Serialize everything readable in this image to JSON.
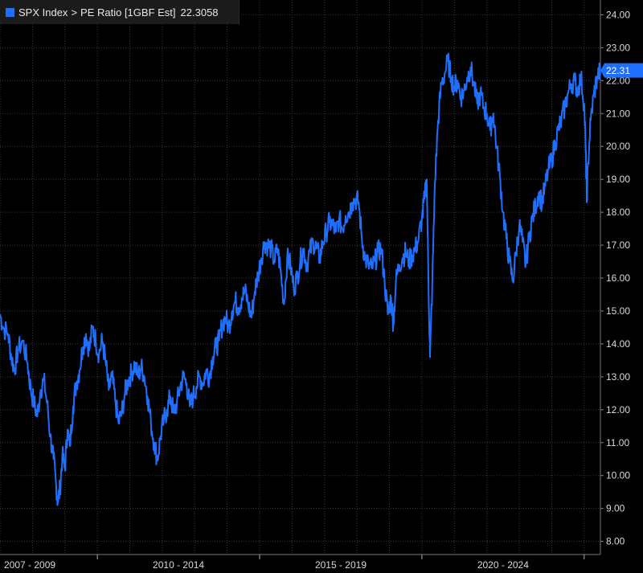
{
  "legend": {
    "series_label": "SPX Index",
    "separator": ">",
    "metric_label": "PE Ratio [1GBF Est]",
    "last_value": "22.3058"
  },
  "colors": {
    "line": "#1f6fff",
    "grid": "#3a3a3a",
    "background": "#000000",
    "text": "#d9d9d9"
  },
  "chart_data": {
    "type": "line",
    "x_axis_labels": [
      "2007 - 2009",
      "2010 - 2014",
      "2015 - 2019",
      "2020 - 2024"
    ],
    "yticks": [
      "8.00",
      "9.00",
      "10.00",
      "11.00",
      "12.00",
      "13.00",
      "14.00",
      "15.00",
      "16.00",
      "17.00",
      "18.00",
      "19.00",
      "20.00",
      "21.00",
      "22.00",
      "23.00",
      "24.00"
    ],
    "ylim": [
      7.6,
      24.45
    ],
    "xlim": [
      2007.0,
      2025.5
    ],
    "grid": true,
    "last_value_label": "22.31",
    "series": [
      {
        "values": [
          [
            2007.0,
            14.9
          ],
          [
            2007.1,
            14.5
          ],
          [
            2007.25,
            14.3
          ],
          [
            2007.35,
            13.6
          ],
          [
            2007.45,
            13.2
          ],
          [
            2007.55,
            13.8
          ],
          [
            2007.7,
            14.1
          ],
          [
            2007.85,
            13.4
          ],
          [
            2007.95,
            12.6
          ],
          [
            2008.05,
            12.2
          ],
          [
            2008.15,
            11.8
          ],
          [
            2008.25,
            12.6
          ],
          [
            2008.35,
            12.9
          ],
          [
            2008.45,
            12.2
          ],
          [
            2008.55,
            11.2
          ],
          [
            2008.65,
            10.5
          ],
          [
            2008.72,
            9.8
          ],
          [
            2008.78,
            9.2
          ],
          [
            2008.85,
            9.6
          ],
          [
            2008.92,
            10.6
          ],
          [
            2009.0,
            10.2
          ],
          [
            2009.08,
            11.4
          ],
          [
            2009.15,
            10.9
          ],
          [
            2009.25,
            12.1
          ],
          [
            2009.35,
            12.8
          ],
          [
            2009.45,
            13.2
          ],
          [
            2009.55,
            13.9
          ],
          [
            2009.65,
            14.3
          ],
          [
            2009.75,
            13.8
          ],
          [
            2009.85,
            14.5
          ],
          [
            2009.95,
            14.1
          ],
          [
            2010.05,
            13.7
          ],
          [
            2010.15,
            14.1
          ],
          [
            2010.25,
            13.5
          ],
          [
            2010.35,
            12.6
          ],
          [
            2010.45,
            13.0
          ],
          [
            2010.55,
            12.3
          ],
          [
            2010.65,
            11.6
          ],
          [
            2010.75,
            11.9
          ],
          [
            2010.85,
            12.5
          ],
          [
            2010.95,
            12.9
          ],
          [
            2011.05,
            13.1
          ],
          [
            2011.15,
            13.4
          ],
          [
            2011.25,
            13.0
          ],
          [
            2011.35,
            13.3
          ],
          [
            2011.45,
            13.0
          ],
          [
            2011.55,
            12.4
          ],
          [
            2011.65,
            11.6
          ],
          [
            2011.75,
            11.0
          ],
          [
            2011.85,
            10.5
          ],
          [
            2011.95,
            11.2
          ],
          [
            2012.05,
            11.7
          ],
          [
            2012.15,
            12.0
          ],
          [
            2012.25,
            12.4
          ],
          [
            2012.35,
            11.9
          ],
          [
            2012.45,
            12.2
          ],
          [
            2012.55,
            12.7
          ],
          [
            2012.65,
            13.0
          ],
          [
            2012.75,
            12.8
          ],
          [
            2012.85,
            12.1
          ],
          [
            2012.95,
            12.4
          ],
          [
            2013.05,
            12.7
          ],
          [
            2013.15,
            13.0
          ],
          [
            2013.25,
            12.8
          ],
          [
            2013.35,
            13.2
          ],
          [
            2013.45,
            13.0
          ],
          [
            2013.55,
            13.6
          ],
          [
            2013.65,
            13.9
          ],
          [
            2013.75,
            14.1
          ],
          [
            2013.85,
            14.6
          ],
          [
            2013.95,
            14.8
          ],
          [
            2014.05,
            14.5
          ],
          [
            2014.15,
            15.0
          ],
          [
            2014.25,
            15.3
          ],
          [
            2014.35,
            15.1
          ],
          [
            2014.45,
            15.4
          ],
          [
            2014.55,
            15.6
          ],
          [
            2014.65,
            15.2
          ],
          [
            2014.75,
            14.8
          ],
          [
            2014.85,
            15.6
          ],
          [
            2014.95,
            16.1
          ],
          [
            2015.05,
            16.6
          ],
          [
            2015.15,
            17.1
          ],
          [
            2015.25,
            17.0
          ],
          [
            2015.35,
            16.9
          ],
          [
            2015.45,
            16.5
          ],
          [
            2015.55,
            16.9
          ],
          [
            2015.65,
            16.2
          ],
          [
            2015.75,
            15.2
          ],
          [
            2015.85,
            16.6
          ],
          [
            2015.95,
            16.4
          ],
          [
            2016.05,
            15.7
          ],
          [
            2016.15,
            16.0
          ],
          [
            2016.25,
            16.5
          ],
          [
            2016.35,
            16.9
          ],
          [
            2016.45,
            16.4
          ],
          [
            2016.55,
            16.8
          ],
          [
            2016.65,
            17.1
          ],
          [
            2016.75,
            16.9
          ],
          [
            2016.85,
            16.6
          ],
          [
            2016.95,
            17.1
          ],
          [
            2017.05,
            17.4
          ],
          [
            2017.15,
            17.7
          ],
          [
            2017.25,
            17.6
          ],
          [
            2017.35,
            17.4
          ],
          [
            2017.45,
            17.8
          ],
          [
            2017.55,
            17.5
          ],
          [
            2017.65,
            17.9
          ],
          [
            2017.75,
            18.0
          ],
          [
            2017.85,
            18.3
          ],
          [
            2017.95,
            18.4
          ],
          [
            2018.05,
            18.3
          ],
          [
            2018.15,
            17.2
          ],
          [
            2018.25,
            16.6
          ],
          [
            2018.35,
            16.4
          ],
          [
            2018.45,
            16.3
          ],
          [
            2018.55,
            16.5
          ],
          [
            2018.65,
            16.8
          ],
          [
            2018.75,
            16.9
          ],
          [
            2018.85,
            15.9
          ],
          [
            2018.95,
            14.9
          ],
          [
            2019.05,
            15.4
          ],
          [
            2019.12,
            14.6
          ],
          [
            2019.2,
            15.9
          ],
          [
            2019.3,
            16.4
          ],
          [
            2019.4,
            16.6
          ],
          [
            2019.5,
            16.8
          ],
          [
            2019.6,
            16.5
          ],
          [
            2019.7,
            16.7
          ],
          [
            2019.8,
            16.9
          ],
          [
            2019.9,
            17.2
          ],
          [
            2020.0,
            17.8
          ],
          [
            2020.08,
            18.4
          ],
          [
            2020.15,
            19.0
          ],
          [
            2020.2,
            16.0
          ],
          [
            2020.25,
            13.6
          ],
          [
            2020.32,
            15.8
          ],
          [
            2020.4,
            18.9
          ],
          [
            2020.5,
            20.8
          ],
          [
            2020.6,
            21.9
          ],
          [
            2020.7,
            22.2
          ],
          [
            2020.8,
            22.6
          ],
          [
            2020.9,
            22.1
          ],
          [
            2021.0,
            21.8
          ],
          [
            2021.1,
            22.0
          ],
          [
            2021.2,
            21.5
          ],
          [
            2021.3,
            21.7
          ],
          [
            2021.4,
            22.1
          ],
          [
            2021.5,
            22.4
          ],
          [
            2021.6,
            21.9
          ],
          [
            2021.7,
            21.3
          ],
          [
            2021.8,
            21.6
          ],
          [
            2021.9,
            21.2
          ],
          [
            2022.0,
            21.0
          ],
          [
            2022.1,
            20.5
          ],
          [
            2022.2,
            21.0
          ],
          [
            2022.3,
            20.0
          ],
          [
            2022.4,
            19.1
          ],
          [
            2022.5,
            18.0
          ],
          [
            2022.6,
            17.2
          ],
          [
            2022.7,
            16.5
          ],
          [
            2022.8,
            15.9
          ],
          [
            2022.9,
            16.8
          ],
          [
            2023.0,
            17.6
          ],
          [
            2023.1,
            17.1
          ],
          [
            2023.2,
            16.4
          ],
          [
            2023.3,
            17.2
          ],
          [
            2023.4,
            17.8
          ],
          [
            2023.5,
            18.2
          ],
          [
            2023.6,
            18.6
          ],
          [
            2023.7,
            18.3
          ],
          [
            2023.8,
            18.8
          ],
          [
            2023.9,
            19.3
          ],
          [
            2024.0,
            19.6
          ],
          [
            2024.1,
            20.1
          ],
          [
            2024.2,
            20.5
          ],
          [
            2024.3,
            20.8
          ],
          [
            2024.4,
            21.2
          ],
          [
            2024.5,
            21.6
          ],
          [
            2024.6,
            21.9
          ],
          [
            2024.7,
            22.0
          ],
          [
            2024.8,
            21.7
          ],
          [
            2024.9,
            22.1
          ],
          [
            2025.0,
            21.3
          ],
          [
            2025.05,
            19.8
          ],
          [
            2025.08,
            18.3
          ],
          [
            2025.12,
            19.5
          ],
          [
            2025.2,
            20.8
          ],
          [
            2025.3,
            21.6
          ],
          [
            2025.4,
            22.1
          ],
          [
            2025.5,
            22.31
          ]
        ]
      }
    ]
  }
}
